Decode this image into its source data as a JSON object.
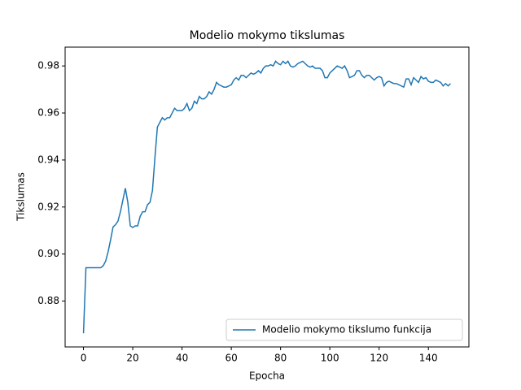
{
  "chart_data": {
    "type": "line",
    "title": "Modelio mokymo tikslumas",
    "xlabel": "Epocha",
    "ylabel": "Tikslumas",
    "x": [
      0,
      1,
      2,
      3,
      4,
      5,
      6,
      7,
      8,
      9,
      10,
      11,
      12,
      13,
      14,
      15,
      16,
      17,
      18,
      19,
      20,
      21,
      22,
      23,
      24,
      25,
      26,
      27,
      28,
      29,
      30,
      31,
      32,
      33,
      34,
      35,
      36,
      37,
      38,
      39,
      40,
      41,
      42,
      43,
      44,
      45,
      46,
      47,
      48,
      49,
      50,
      51,
      52,
      53,
      54,
      55,
      56,
      57,
      58,
      59,
      60,
      61,
      62,
      63,
      64,
      65,
      66,
      67,
      68,
      69,
      70,
      71,
      72,
      73,
      74,
      75,
      76,
      77,
      78,
      79,
      80,
      81,
      82,
      83,
      84,
      85,
      86,
      87,
      88,
      89,
      90,
      91,
      92,
      93,
      94,
      95,
      96,
      97,
      98,
      99,
      100,
      101,
      102,
      103,
      104,
      105,
      106,
      107,
      108,
      109,
      110,
      111,
      112,
      113,
      114,
      115,
      116,
      117,
      118,
      119,
      120,
      121,
      122,
      123,
      124,
      125,
      126,
      127,
      128,
      129,
      130,
      131,
      132,
      133,
      134,
      135,
      136,
      137,
      138,
      139,
      140,
      141,
      142,
      143,
      144,
      145,
      146,
      147,
      148,
      149
    ],
    "series": [
      {
        "name": "Modelio mokymo tikslumo funkcija",
        "color": "#1f77b4",
        "values": [
          0.8663,
          0.8942,
          0.8942,
          0.8942,
          0.8942,
          0.8942,
          0.8942,
          0.8942,
          0.895,
          0.897,
          0.901,
          0.906,
          0.9115,
          0.9125,
          0.914,
          0.918,
          0.923,
          0.928,
          0.922,
          0.912,
          0.9113,
          0.912,
          0.912,
          0.916,
          0.918,
          0.918,
          0.921,
          0.922,
          0.927,
          0.941,
          0.954,
          0.956,
          0.958,
          0.957,
          0.958,
          0.958,
          0.96,
          0.962,
          0.961,
          0.961,
          0.961,
          0.962,
          0.964,
          0.961,
          0.962,
          0.965,
          0.964,
          0.967,
          0.966,
          0.966,
          0.967,
          0.969,
          0.968,
          0.97,
          0.973,
          0.972,
          0.9715,
          0.971,
          0.971,
          0.9715,
          0.972,
          0.974,
          0.975,
          0.974,
          0.976,
          0.976,
          0.975,
          0.976,
          0.977,
          0.9765,
          0.977,
          0.978,
          0.977,
          0.979,
          0.98,
          0.98,
          0.9805,
          0.98,
          0.982,
          0.981,
          0.9805,
          0.982,
          0.981,
          0.982,
          0.98,
          0.9795,
          0.98,
          0.981,
          0.9815,
          0.982,
          0.981,
          0.98,
          0.9795,
          0.98,
          0.979,
          0.979,
          0.979,
          0.978,
          0.975,
          0.975,
          0.977,
          0.978,
          0.979,
          0.98,
          0.9795,
          0.979,
          0.98,
          0.978,
          0.975,
          0.9755,
          0.976,
          0.978,
          0.978,
          0.976,
          0.975,
          0.976,
          0.976,
          0.975,
          0.974,
          0.975,
          0.9755,
          0.975,
          0.9715,
          0.973,
          0.9735,
          0.973,
          0.9725,
          0.9725,
          0.972,
          0.9715,
          0.971,
          0.9745,
          0.9745,
          0.972,
          0.975,
          0.974,
          0.973,
          0.9755,
          0.9745,
          0.975,
          0.9735,
          0.973,
          0.973,
          0.974,
          0.9735,
          0.973,
          0.9715,
          0.9725,
          0.9715,
          0.9725
        ]
      }
    ],
    "xlim": [
      -7.45,
      156.45
    ],
    "xticks": [
      0,
      20,
      40,
      60,
      80,
      100,
      120,
      140
    ],
    "ylim": [
      0.8605,
      0.988
    ],
    "yticks": [
      0.88,
      {
        "value": 0.9,
        "label": "0.90"
      },
      0.92,
      0.94,
      0.96,
      0.98
    ],
    "legend": "lower right"
  }
}
